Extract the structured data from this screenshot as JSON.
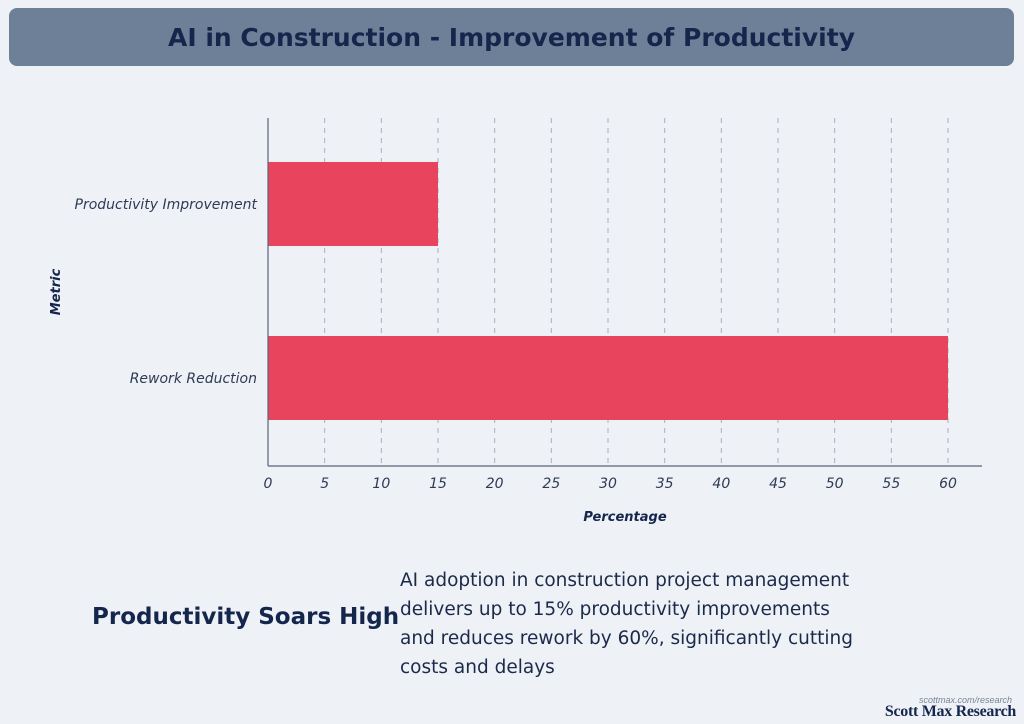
{
  "header": {
    "title": "AI in Construction - Improvement of Productivity"
  },
  "chart_data": {
    "type": "bar",
    "orientation": "horizontal",
    "categories": [
      "Productivity Improvement",
      "Rework Reduction"
    ],
    "values": [
      15,
      60
    ],
    "xlabel": "Percentage",
    "ylabel": "Metric",
    "xlim": [
      0,
      63
    ],
    "xticks": [
      0,
      5,
      10,
      15,
      20,
      25,
      30,
      35,
      40,
      45,
      50,
      55,
      60
    ],
    "grid": "vertical dashed",
    "bar_color": "#e8445e"
  },
  "insight": {
    "headline": "Productivity Soars High",
    "text": "AI adoption in construction project management delivers up to 15% productivity improvements and reduces rework by 60%, significantly cutting costs and delays"
  },
  "branding": {
    "url": "scottmax.com/research",
    "name": "Scott Max Research"
  },
  "colors": {
    "background": "#eef1f6",
    "title_bar": "#6e7f98",
    "navy": "#15264d",
    "bar": "#e8445e"
  }
}
